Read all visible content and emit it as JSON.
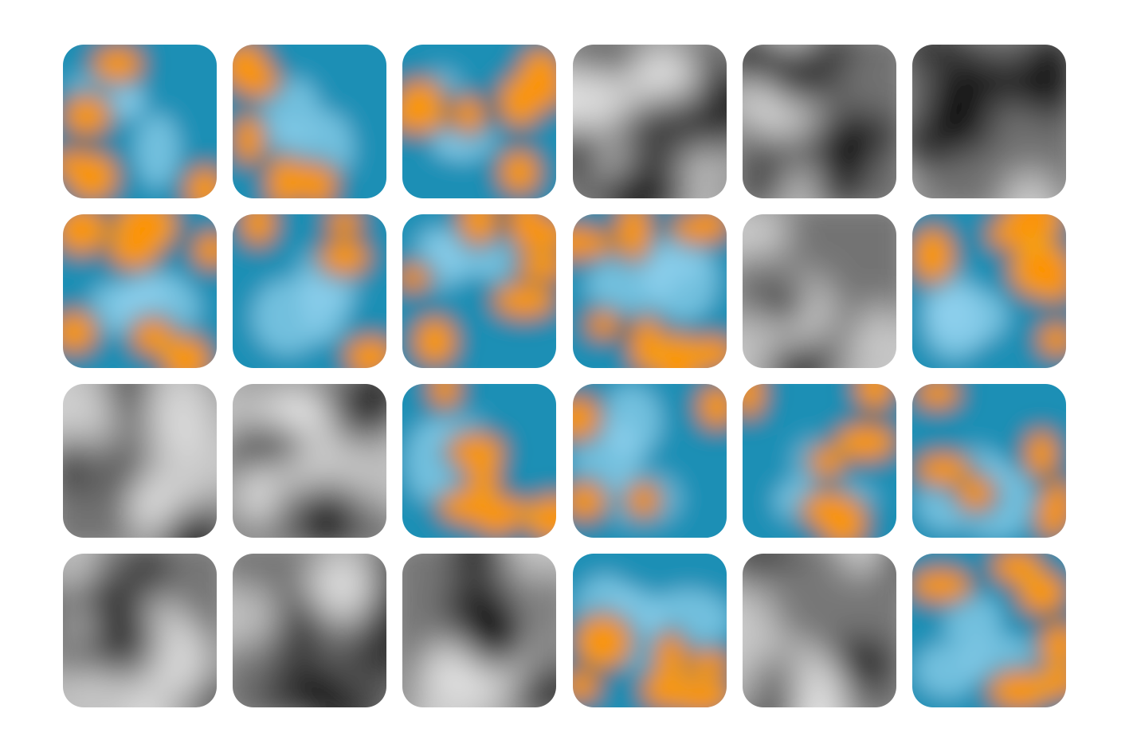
{
  "palettes": {
    "blue_orange": [
      "#0b4a63",
      "#1e8fb5",
      "#8fd0ec"
    ],
    "blue_orange_hot": [
      "#f7a20a",
      "#ff8c00"
    ],
    "grayscale": [
      "#000000",
      "#ffffff"
    ]
  },
  "tiles": [
    {
      "row": 0,
      "col": 0,
      "style": "blue-orange",
      "seed": 11,
      "warm": 0.28
    },
    {
      "row": 0,
      "col": 1,
      "style": "blue-orange",
      "seed": 23,
      "warm": 0.55
    },
    {
      "row": 0,
      "col": 2,
      "style": "blue-orange",
      "seed": 37,
      "warm": 0.5
    },
    {
      "row": 0,
      "col": 3,
      "style": "grayscale",
      "seed": 41
    },
    {
      "row": 0,
      "col": 4,
      "style": "grayscale",
      "seed": 53
    },
    {
      "row": 0,
      "col": 5,
      "style": "grayscale",
      "seed": 67
    },
    {
      "row": 1,
      "col": 0,
      "style": "blue-orange",
      "seed": 71,
      "warm": 0.45
    },
    {
      "row": 1,
      "col": 1,
      "style": "blue-orange",
      "seed": 83,
      "warm": 0.3
    },
    {
      "row": 1,
      "col": 2,
      "style": "blue-orange",
      "seed": 97,
      "warm": 0.58
    },
    {
      "row": 1,
      "col": 3,
      "style": "blue-orange",
      "seed": 101,
      "warm": 0.72
    },
    {
      "row": 1,
      "col": 4,
      "style": "grayscale",
      "seed": 113
    },
    {
      "row": 1,
      "col": 5,
      "style": "blue-orange",
      "seed": 127,
      "warm": 0.55
    },
    {
      "row": 2,
      "col": 0,
      "style": "grayscale",
      "seed": 131
    },
    {
      "row": 2,
      "col": 1,
      "style": "grayscale",
      "seed": 149
    },
    {
      "row": 2,
      "col": 2,
      "style": "blue-orange",
      "seed": 151,
      "warm": 0.45
    },
    {
      "row": 2,
      "col": 3,
      "style": "blue-orange",
      "seed": 163,
      "warm": 0.3
    },
    {
      "row": 2,
      "col": 4,
      "style": "blue-orange",
      "seed": 173,
      "warm": 0.32
    },
    {
      "row": 2,
      "col": 5,
      "style": "blue-orange",
      "seed": 181,
      "warm": 0.38
    },
    {
      "row": 3,
      "col": 0,
      "style": "grayscale",
      "seed": 191
    },
    {
      "row": 3,
      "col": 1,
      "style": "grayscale",
      "seed": 197
    },
    {
      "row": 3,
      "col": 2,
      "style": "grayscale",
      "seed": 211
    },
    {
      "row": 3,
      "col": 3,
      "style": "blue-orange",
      "seed": 223,
      "warm": 0.42
    },
    {
      "row": 3,
      "col": 4,
      "style": "grayscale",
      "seed": 229
    },
    {
      "row": 3,
      "col": 5,
      "style": "blue-orange",
      "seed": 233,
      "warm": 0.35
    }
  ]
}
